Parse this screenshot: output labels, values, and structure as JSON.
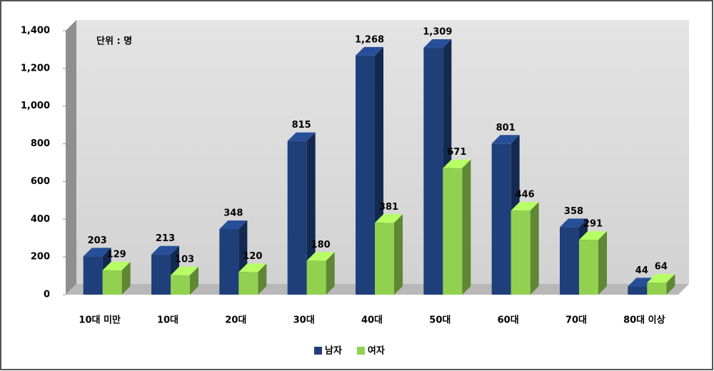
{
  "chart_data": {
    "type": "bar3d",
    "annotation": "단위 : 명",
    "categories": [
      "10대 미만",
      "10대",
      "20대",
      "30대",
      "40대",
      "50대",
      "60대",
      "70대",
      "80대 이상"
    ],
    "series": [
      {
        "name": "남자",
        "color": "#1f3f7a",
        "values": [
          203,
          213,
          348,
          815,
          1268,
          1309,
          801,
          358,
          44
        ],
        "value_labels": [
          "203",
          "213",
          "348",
          "815",
          "1,268",
          "1,309",
          "801",
          "358",
          "44"
        ]
      },
      {
        "name": "여자",
        "color": "#92d050",
        "values": [
          129,
          103,
          120,
          180,
          381,
          671,
          446,
          291,
          64
        ]
      }
    ],
    "ylim": [
      0,
      1400
    ],
    "yticks": [
      0,
      200,
      400,
      600,
      800,
      {
        "value": 1000,
        "label": "1,000"
      },
      {
        "value": 1200,
        "label": "1,200"
      },
      {
        "value": 1400,
        "label": "1,400"
      }
    ],
    "grid": false,
    "legend": "bottom"
  }
}
